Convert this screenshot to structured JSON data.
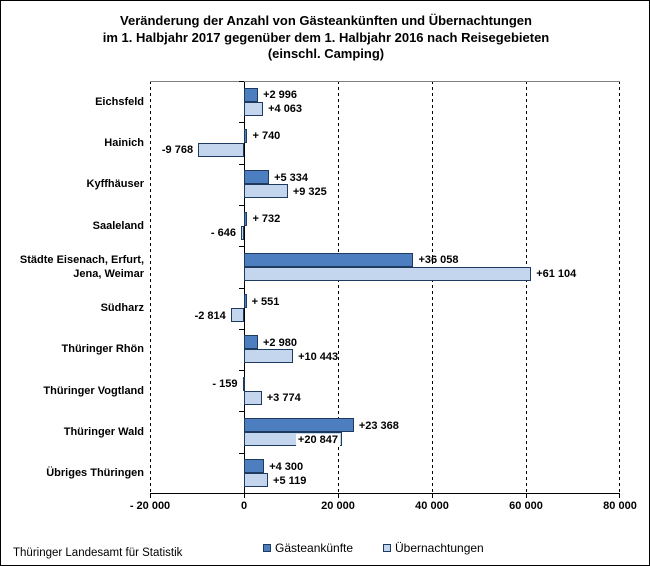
{
  "chart_data": {
    "type": "bar",
    "orientation": "horizontal",
    "title": "Veränderung der Anzahl von Gästeankünften und Übernachtungen\nim 1. Halbjahr 2017 gegenüber dem 1. Halbjahr 2016 nach Reisegebieten\n(einschl. Camping)",
    "categories": [
      "Eichsfeld",
      "Hainich",
      "Kyffhäuser",
      "Saaleland",
      "Städte Eisenach, Erfurt,\nJena, Weimar",
      "Südharz",
      "Thüringer Rhön",
      "Thüringer Vogtland",
      "Thüringer Wald",
      "Übriges Thüringen"
    ],
    "series": [
      {
        "name": "Gästeankünfte",
        "color": "#4D7EBF",
        "border_color": "#1F3A5F",
        "values": [
          2996,
          740,
          5334,
          732,
          36058,
          551,
          2980,
          -159,
          23368,
          4300
        ],
        "labels": [
          "+2 996",
          "+ 740",
          "+5 334",
          "+ 732",
          "+36 058",
          "+ 551",
          "+2 980",
          "- 159",
          "+23 368",
          "+4 300"
        ],
        "inside_label_indices": []
      },
      {
        "name": "Übernachtungen",
        "color": "#C4D6ED",
        "border_color": "#1F3A5F",
        "values": [
          4063,
          -9768,
          9325,
          -646,
          61104,
          -2814,
          10443,
          3774,
          20847,
          5119
        ],
        "labels": [
          "+4 063",
          "-9 768",
          "+9 325",
          "- 646",
          "+61 104",
          "-2 814",
          "+10 443",
          "+3 774",
          "+20 847",
          "+5 119"
        ],
        "inside_label_indices": [
          8
        ]
      }
    ],
    "xlim": [
      -20000,
      80000
    ],
    "xtick_values": [
      -20000,
      0,
      20000,
      40000,
      60000,
      80000
    ],
    "xtick_labels": [
      "- 20 000",
      "0",
      "20 000",
      "40 000",
      "60 000",
      "80 000"
    ],
    "grid": "dashed-vertical-on",
    "legend_position": "bottom-center",
    "colors": {
      "plot_top_border": "#808080",
      "axis": "#000000",
      "text": "#000000"
    }
  },
  "footer": {
    "source": "Thüringer Landesamt für Statistik"
  }
}
